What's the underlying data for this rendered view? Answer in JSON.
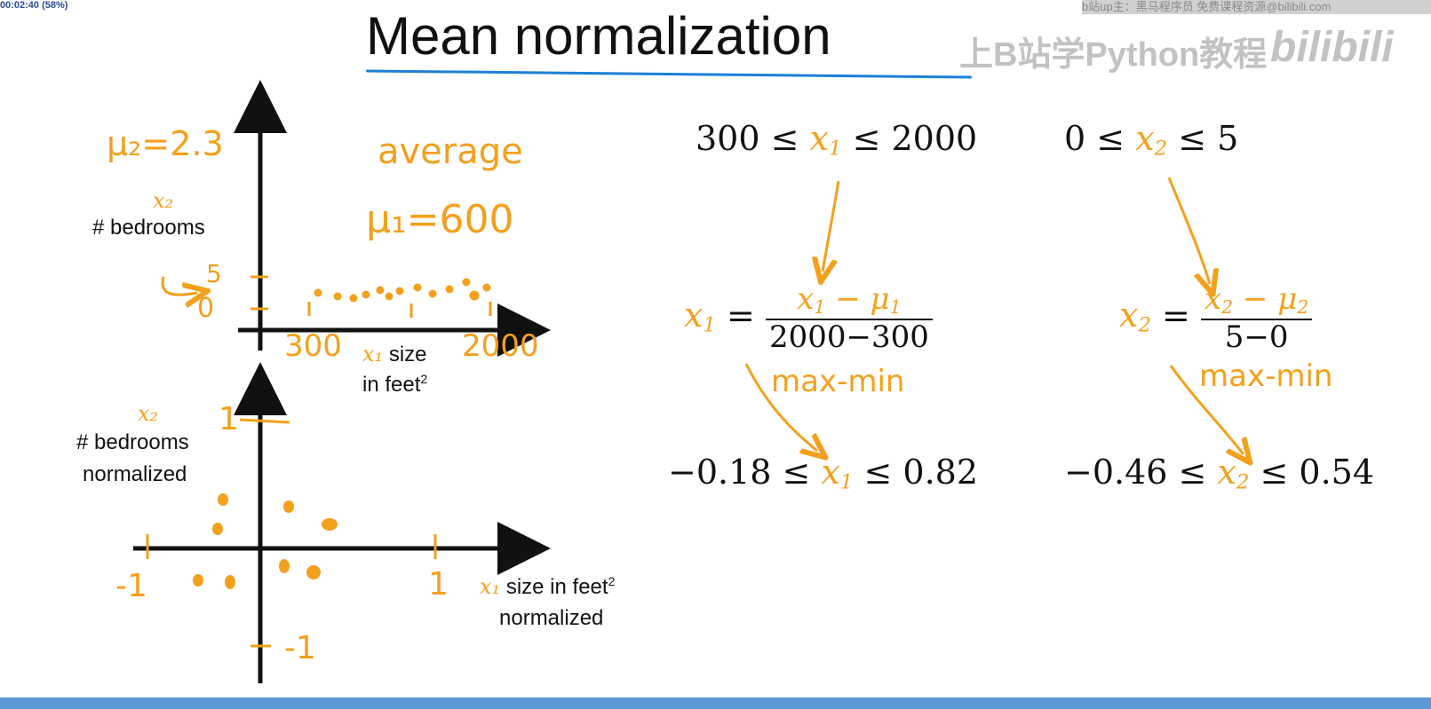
{
  "video": {
    "timecode": "00:02:40 (58%)",
    "source_watermark": "b站up主：黑马程序员 免费课程资源@bilibili.com",
    "side_watermark": "上B站学Python教程",
    "logo_watermark": "bilibili"
  },
  "title": "Mean normalization",
  "top_plot": {
    "y_var": "x₂",
    "y_label": "# bedrooms",
    "x_var": "x₁",
    "x_label_1": "size",
    "x_label_2": "in feet",
    "x_label_sup": "2",
    "annot_mu2": "μ₂=2.3",
    "annot_average": "average",
    "annot_mu1": "μ₁=600",
    "annot_y5": "5",
    "annot_y0": "0",
    "annot_x300": "300",
    "annot_x2000": "2000"
  },
  "bottom_plot": {
    "y_var": "x₂",
    "y_label_1": "# bedrooms",
    "y_label_2": "normalized",
    "x_var": "x₁",
    "x_label_1": "size in feet",
    "x_label_sup": "2",
    "x_label_2": "normalized",
    "annot_y1": "1",
    "annot_yneg1": "-1",
    "annot_xneg1": "-1",
    "annot_x1": "1"
  },
  "eq1": {
    "range_low": "300",
    "range_high": "2000",
    "var": "x",
    "var_sub": "1",
    "frac_num_var": "x",
    "frac_num_sub": "1",
    "frac_num_mu": "μ",
    "frac_num_mu_sub": "1",
    "frac_den": "2000−300",
    "note": "max-min",
    "norm_low": "−0.18",
    "norm_high": "0.82"
  },
  "eq2": {
    "range_low": "0",
    "range_high": "5",
    "var": "x",
    "var_sub": "2",
    "frac_num_var": "x",
    "frac_num_sub": "2",
    "frac_num_mu": "μ",
    "frac_num_mu_sub": "2",
    "frac_den": "5−0",
    "note": "max-min",
    "norm_low": "−0.46",
    "norm_high": "0.54"
  },
  "colors": {
    "accent": "#f3a01c",
    "underline": "#1e7fd8",
    "ink": "#111111",
    "bottom_bar": "#5b9bd5"
  }
}
